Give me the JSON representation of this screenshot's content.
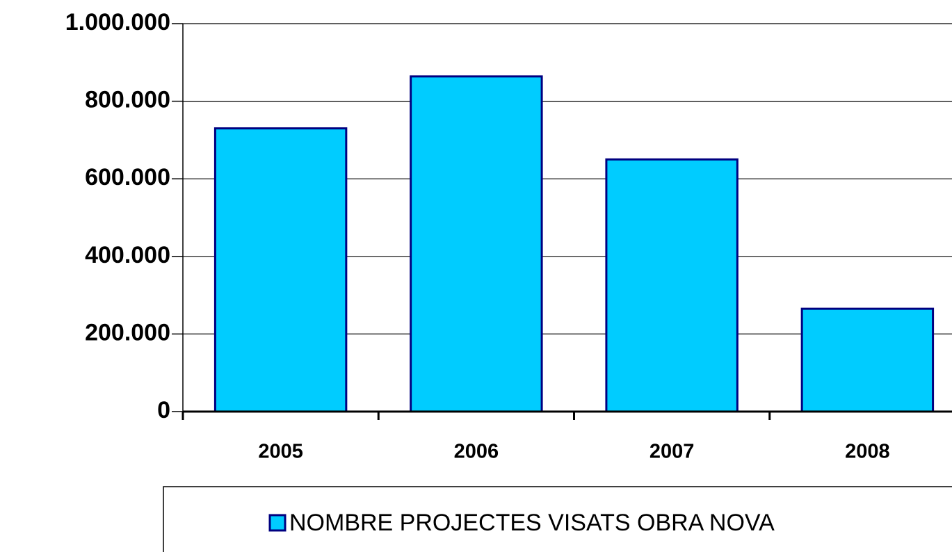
{
  "chart_data": {
    "type": "bar",
    "categories": [
      "2005",
      "2006",
      "2007",
      "2008"
    ],
    "series": [
      {
        "name": "NOMBRE PROJECTES VISATS OBRA NOVA",
        "color": "#00ccff",
        "values": [
          730000,
          864000,
          650000,
          265000
        ]
      }
    ],
    "ylim": [
      0,
      1000000
    ],
    "yticks": [
      0,
      {
        "value": 200000,
        "label": "200.000"
      },
      {
        "value": 400000,
        "label": "400.000"
      },
      {
        "value": 600000,
        "label": "600.000"
      },
      {
        "value": 800000,
        "label": "800.000"
      },
      {
        "value": 1000000,
        "label": "1.000.000"
      }
    ],
    "grid": true
  }
}
